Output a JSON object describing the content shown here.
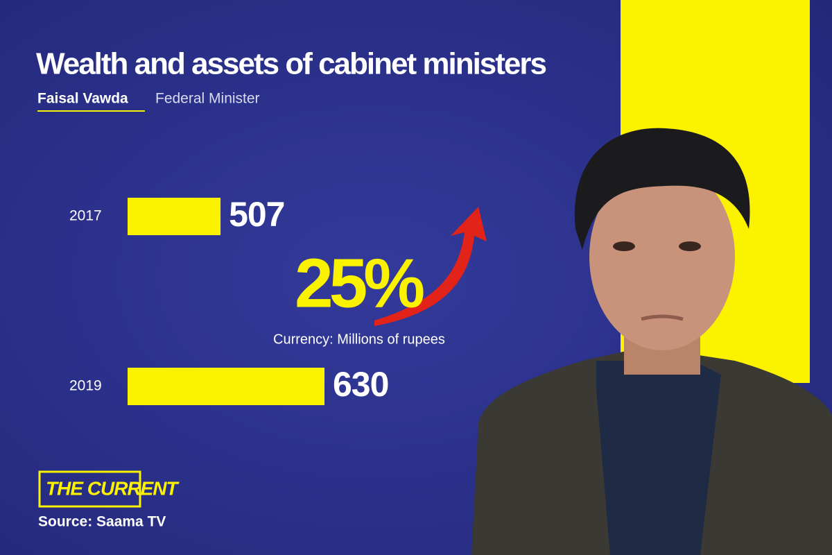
{
  "chart_data": {
    "type": "bar",
    "orientation": "horizontal",
    "title": "Wealth and assets of cabinet ministers",
    "subtitle": "Faisal Vawda",
    "role": "Federal Minister",
    "categories": [
      "2017",
      "2019"
    ],
    "values": [
      507,
      630
    ],
    "color": "#fbf200",
    "xlim": [
      397,
      630
    ],
    "annotation": "25%",
    "unit_note": "Currency: Millions of rupees",
    "brand": "THE CURRENT",
    "source": "Source: Saama TV"
  }
}
